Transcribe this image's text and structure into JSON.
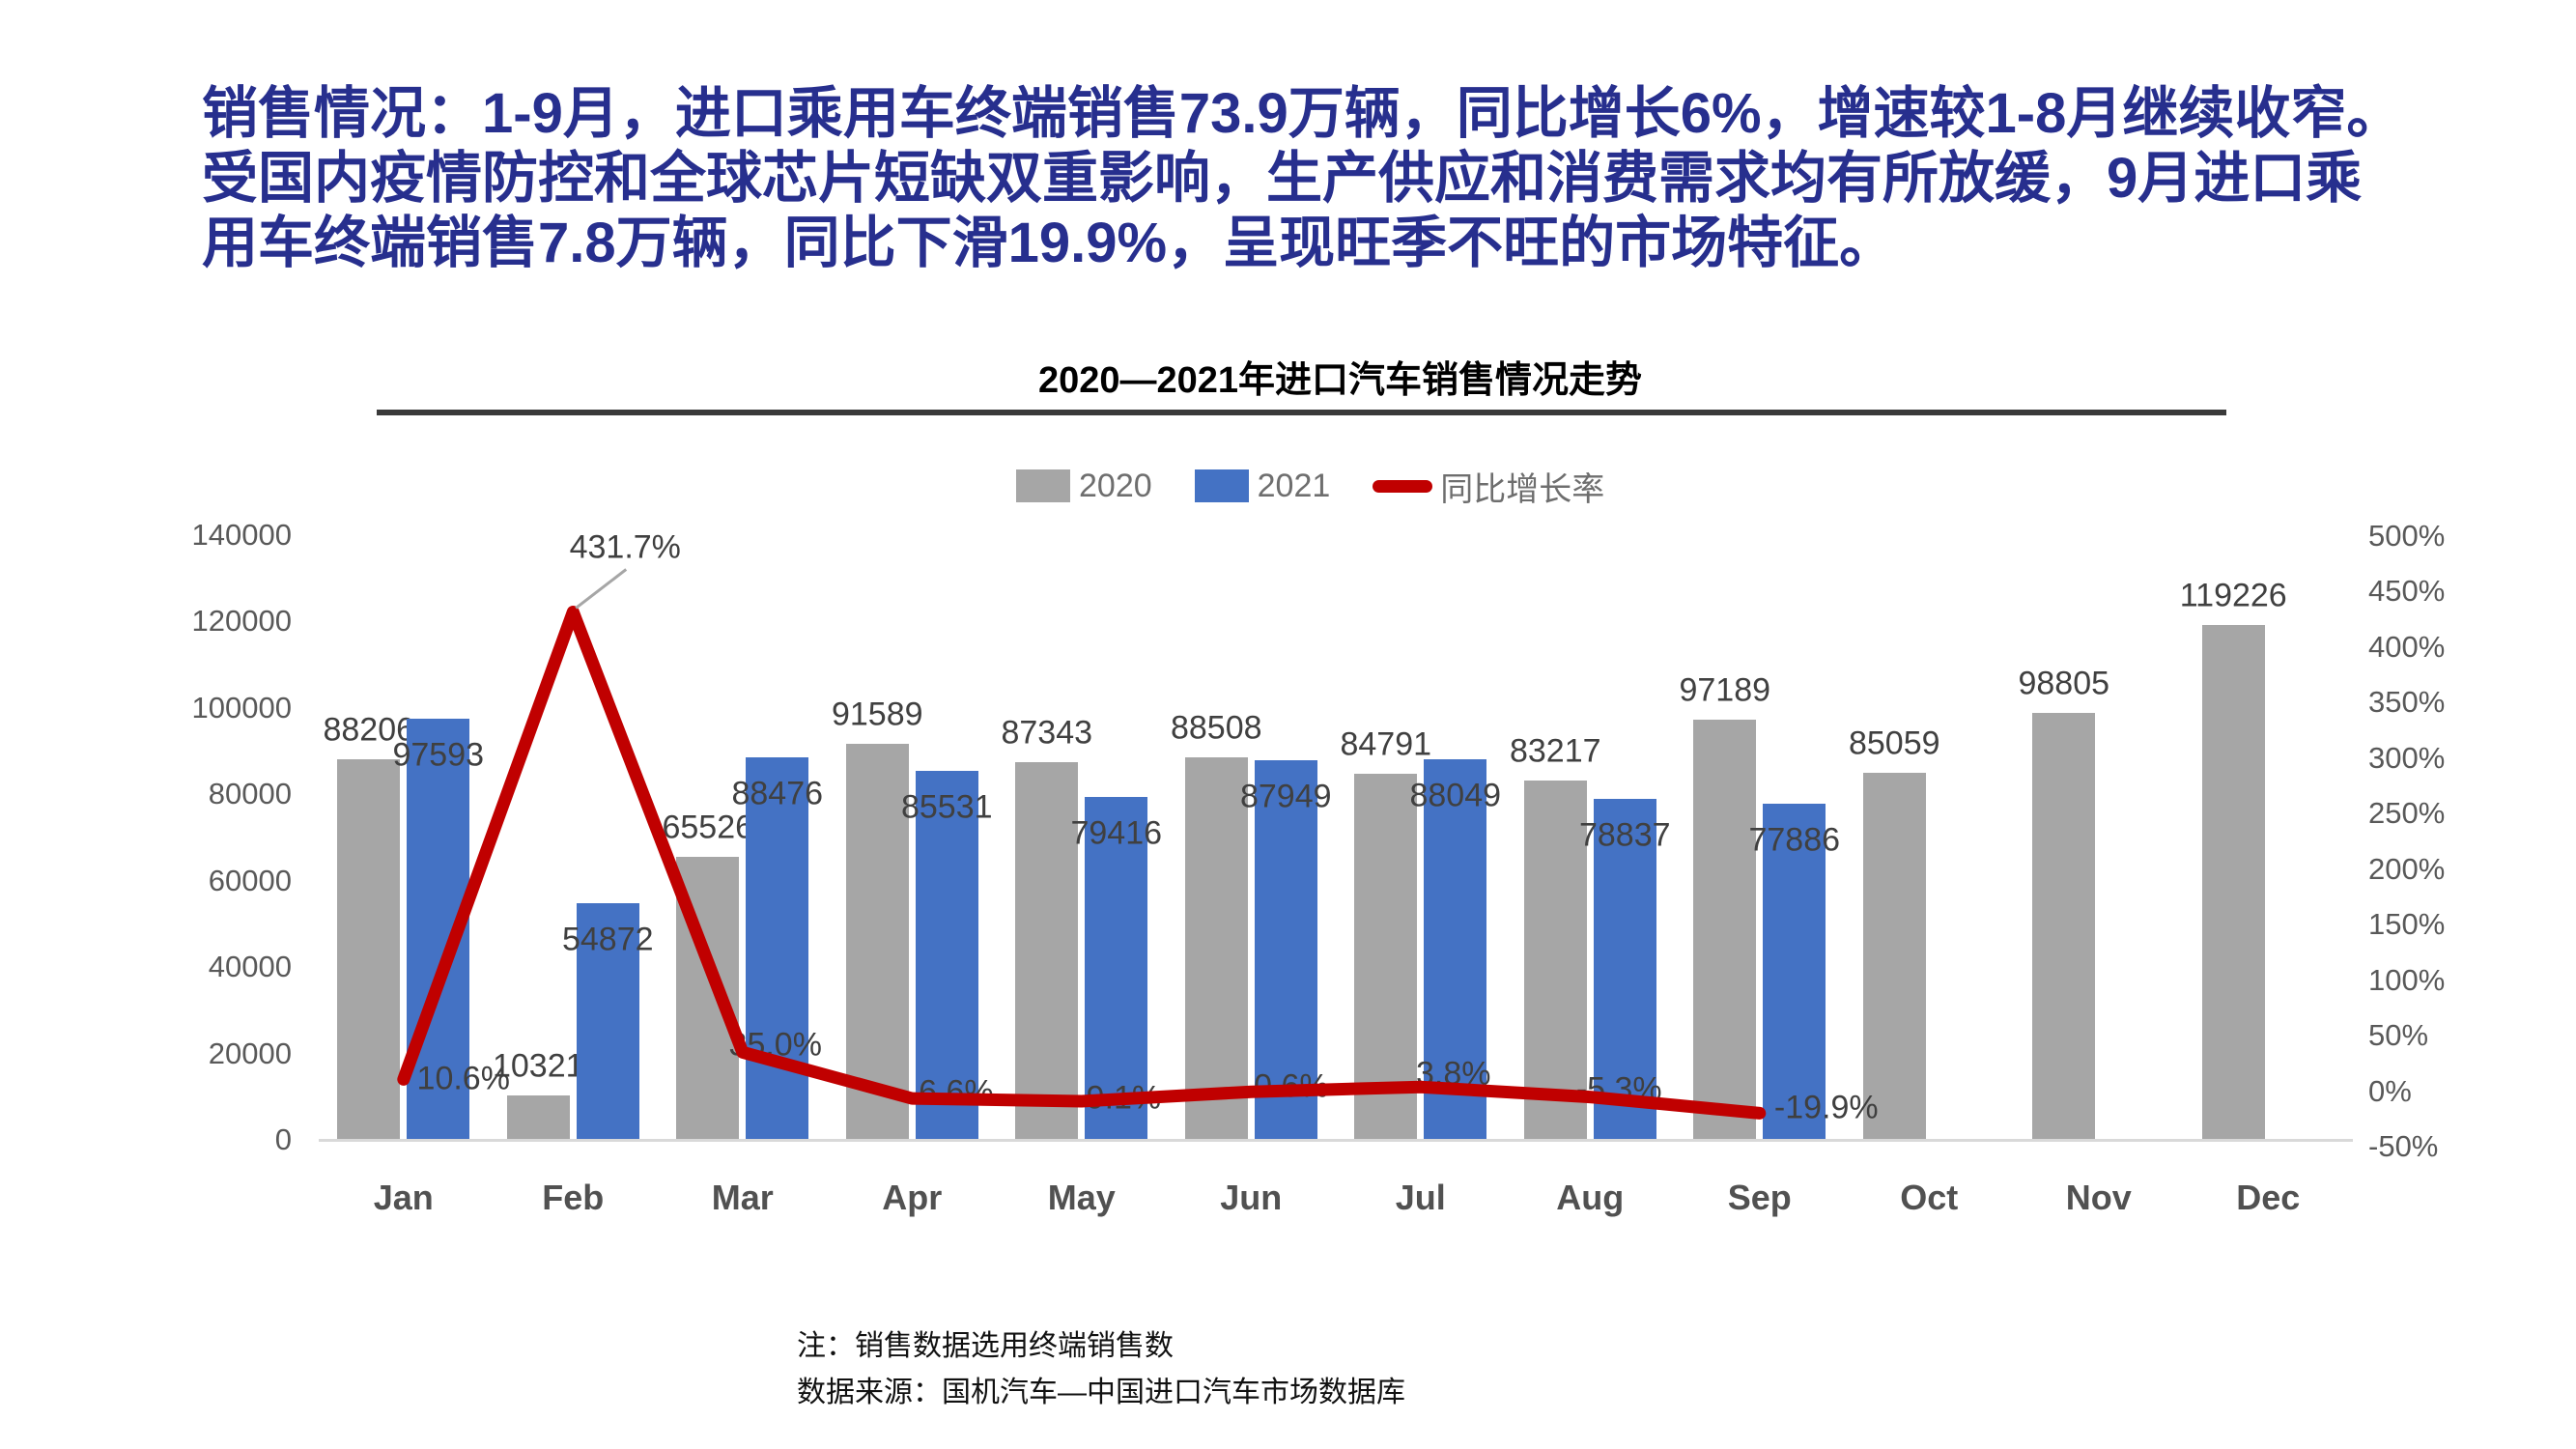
{
  "headline": {
    "line1": "销售情况：1-9月，进口乘用车终端销售73.9万辆，同比增长6%，增速较1-8月继续收窄。",
    "line2": "受国内疫情防控和全球芯片短缺双重影响，生产供应和消费需求均有所放缓，9月进口乘",
    "line3": "用车终端销售7.8万辆，同比下滑19.9%，呈现旺季不旺的市场特征。"
  },
  "colors": {
    "headline": "#272F8E",
    "bar_2020": "#A6A6A6",
    "bar_2021": "#4472C4",
    "growth_line": "#C00000",
    "leader_line": "#A6A6A6"
  },
  "chart_data": {
    "type": "bar",
    "subtype": "combo-bar-line",
    "title": "2020—2021年进口汽车销售情况走势",
    "categories": [
      "Jan",
      "Feb",
      "Mar",
      "Apr",
      "May",
      "Jun",
      "Jul",
      "Aug",
      "Sep",
      "Oct",
      "Nov",
      "Dec"
    ],
    "series": [
      {
        "name": "2020",
        "type": "bar",
        "color": "#A6A6A6",
        "values": [
          88206,
          10321,
          65526,
          91589,
          87343,
          88508,
          84791,
          83217,
          97189,
          85059,
          98805,
          119226
        ]
      },
      {
        "name": "2021",
        "type": "bar",
        "color": "#4472C4",
        "values": [
          97593,
          54872,
          88476,
          85531,
          79416,
          87949,
          88049,
          78837,
          77886,
          null,
          null,
          null
        ]
      },
      {
        "name": "同比增长率",
        "type": "line",
        "axis": "right",
        "color": "#C00000",
        "values": [
          10.6,
          431.7,
          35.0,
          -6.6,
          -9.1,
          -0.6,
          3.8,
          -5.3,
          -19.9,
          null,
          null,
          null
        ],
        "labels": [
          "10.6%",
          "431.7%",
          "35.0%",
          "-6.6%",
          "-9.1%",
          "-0.6%",
          "3.8%",
          "-5.3%",
          "-19.9%"
        ]
      }
    ],
    "left_axis": {
      "ticks": [
        "140000",
        "120000",
        "100000",
        "80000",
        "60000",
        "40000",
        "20000",
        "0"
      ],
      "range": [
        0,
        140000
      ]
    },
    "right_axis": {
      "ticks": [
        "500%",
        "450%",
        "400%",
        "350%",
        "300%",
        "250%",
        "200%",
        "150%",
        "100%",
        "50%",
        "0%",
        "-50%"
      ],
      "range": [
        -50,
        500
      ]
    },
    "legend": [
      {
        "label": "2020",
        "color": "#A6A6A6",
        "marker": "bar"
      },
      {
        "label": "2021",
        "color": "#4472C4",
        "marker": "bar"
      },
      {
        "label": "同比增长率",
        "color": "#C00000",
        "marker": "line"
      }
    ],
    "grid": "off",
    "legend_position": "top-center"
  },
  "notes": {
    "line1": "注：销售数据选用终端销售数",
    "line2": "数据来源：国机汽车—中国进口汽车市场数据库"
  }
}
